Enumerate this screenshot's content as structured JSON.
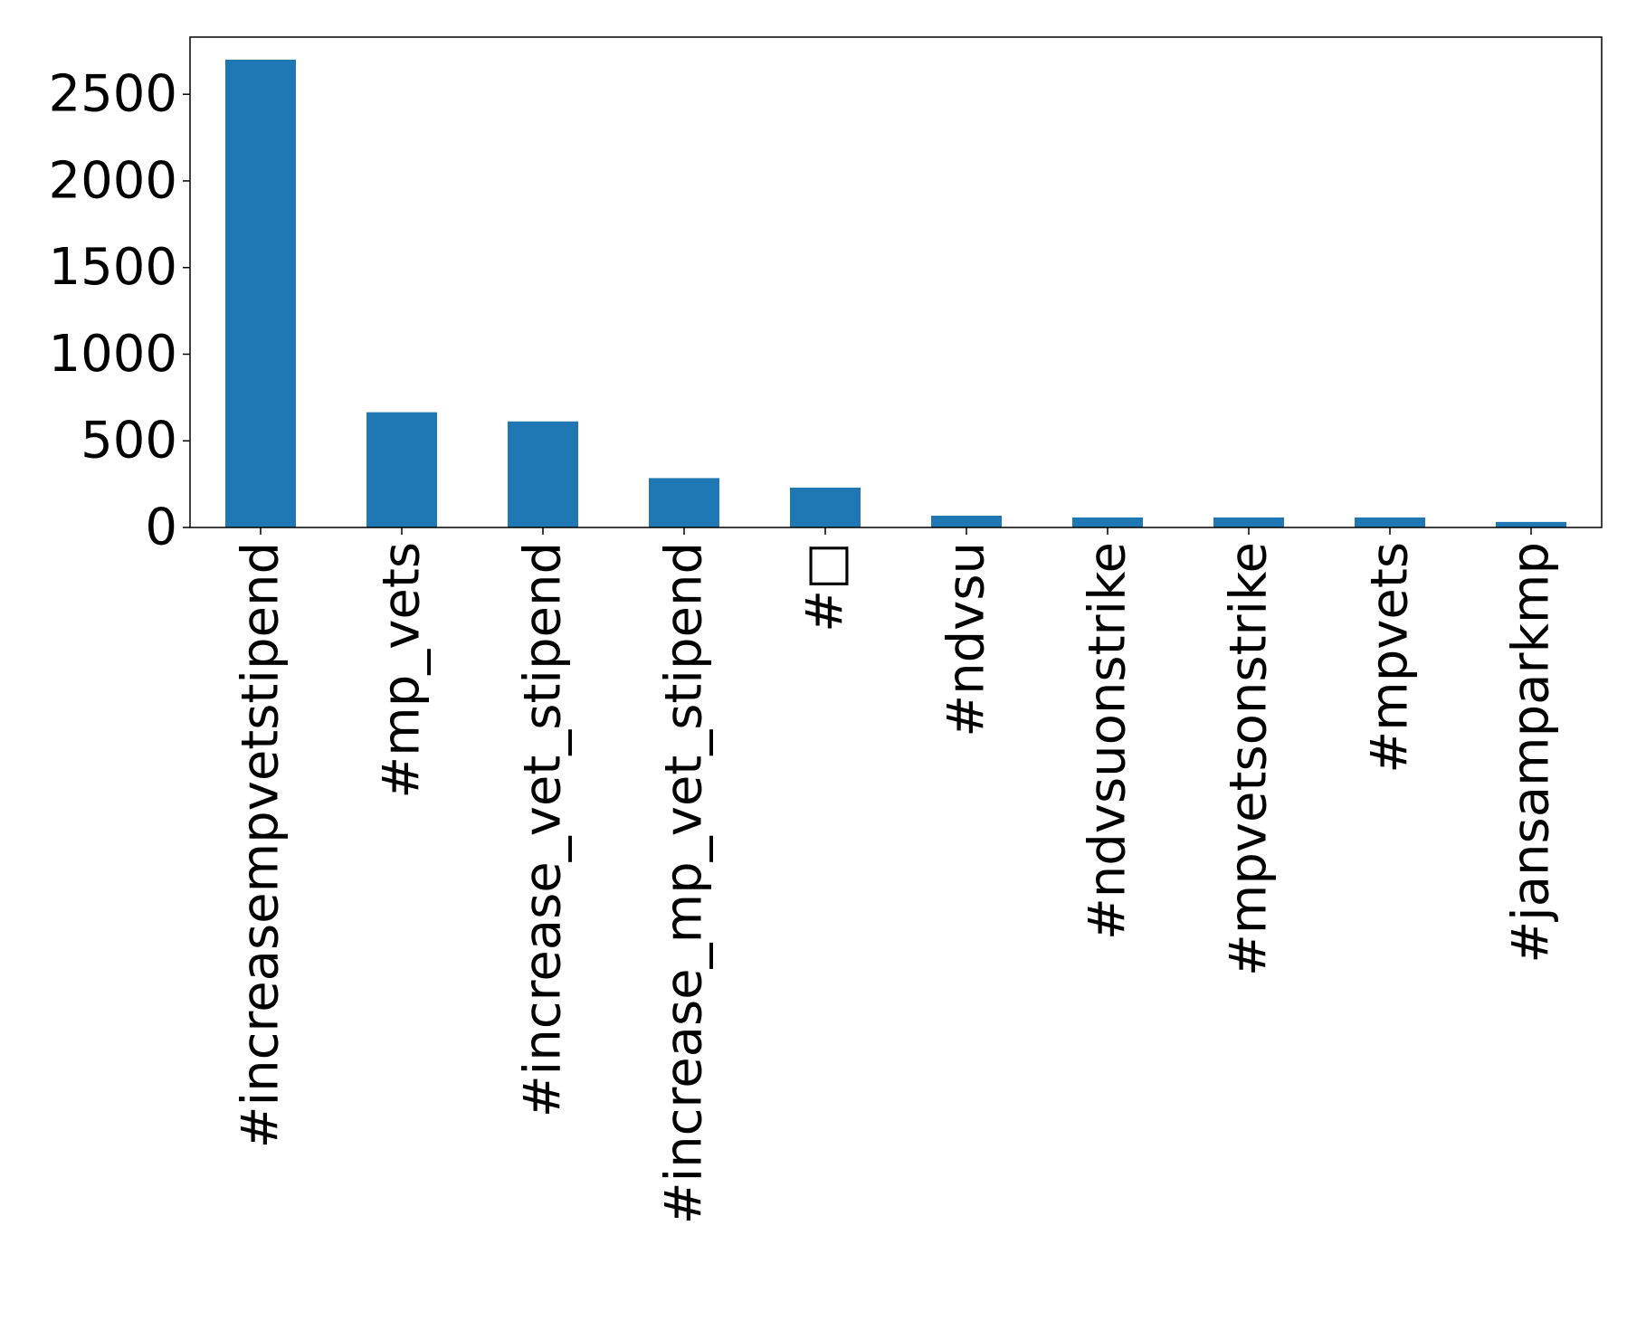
{
  "chart_data": {
    "type": "bar",
    "categories": [
      "#increasempvetstipend",
      "#mp_vets",
      "#increase_vet_stipend",
      "#increase_mp_vet_stipend",
      "#□",
      "#ndvsu",
      "#ndvsuonstrike",
      "#mpvetsonstrike",
      "#mpvets",
      "#jansamparkmp"
    ],
    "values": [
      2700,
      665,
      612,
      285,
      230,
      68,
      58,
      58,
      58,
      32
    ],
    "ylim": [
      0,
      2830
    ],
    "yticks": [
      0,
      500,
      1000,
      1500,
      2000,
      2500
    ],
    "ytick_labels": [
      "0",
      "500",
      "1000",
      "1500",
      "2000",
      "2500"
    ],
    "title": "",
    "xlabel": "",
    "ylabel": "",
    "grid": false,
    "legend": "none",
    "colors": {
      "bar": "#1f77b4",
      "axis": "#000000",
      "text": "#000000",
      "background": "#ffffff"
    }
  }
}
